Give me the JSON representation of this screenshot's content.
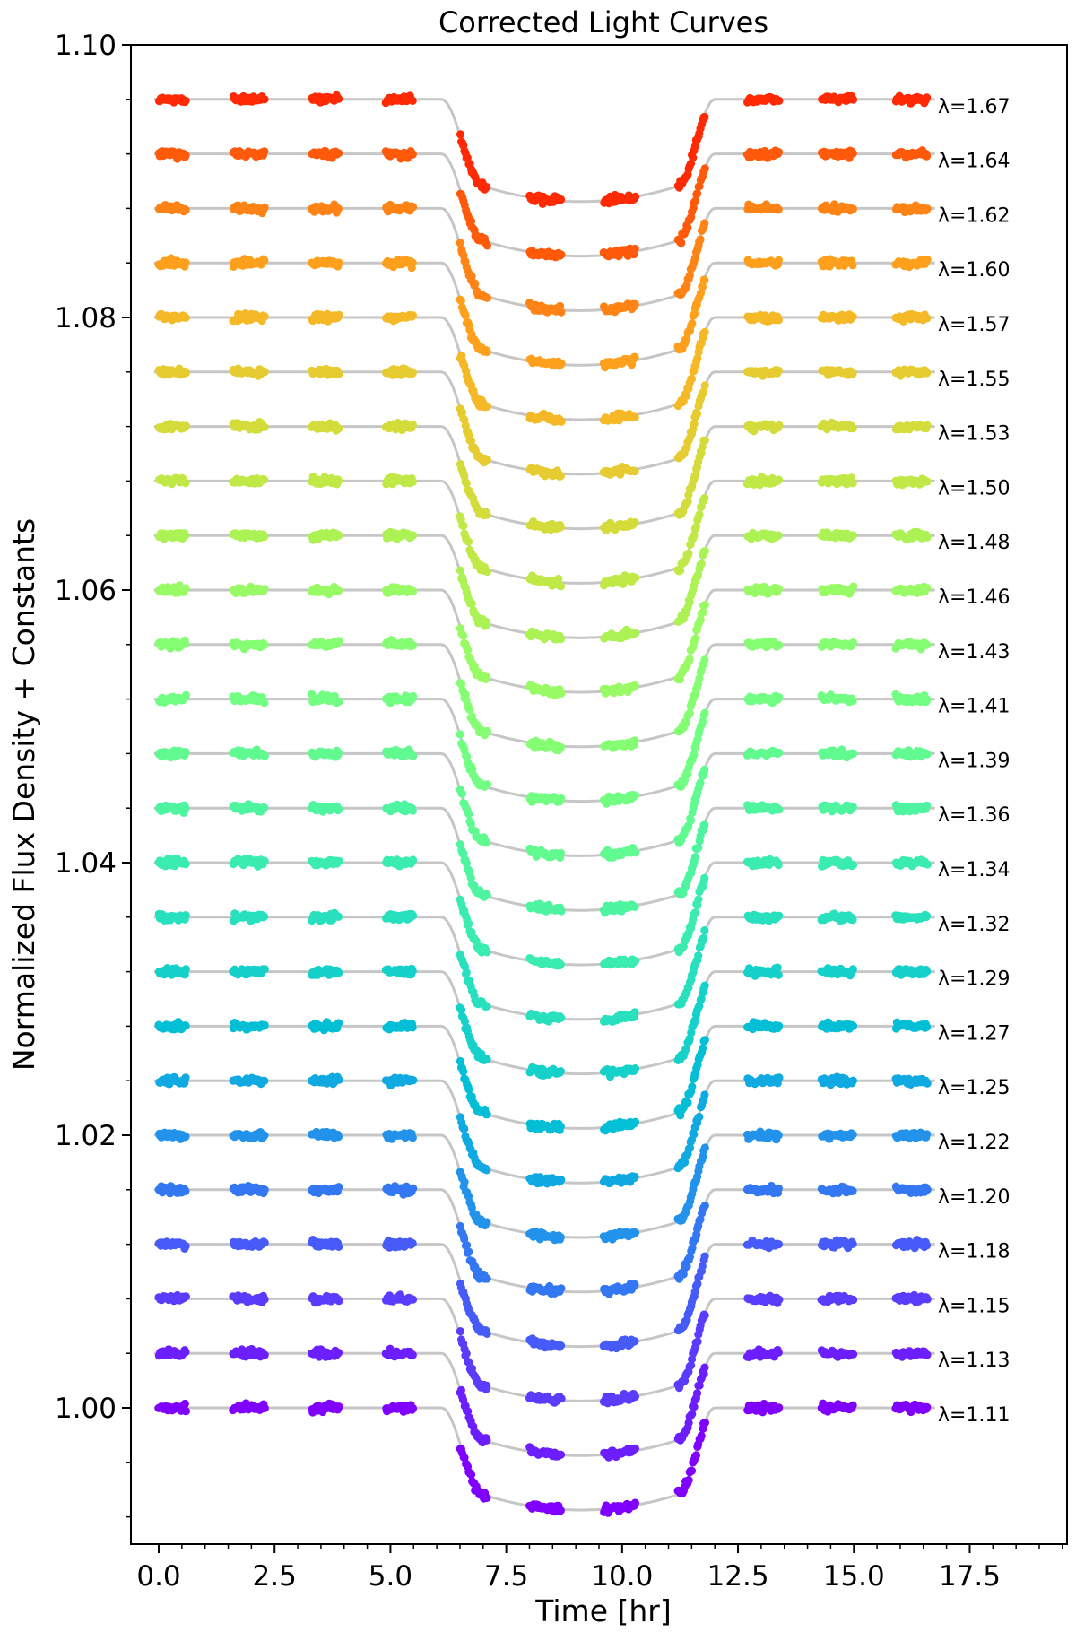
{
  "chart_data": {
    "type": "scatter",
    "title": "Corrected Light Curves",
    "xlabel": "Time [hr]",
    "ylabel": "Normalized Flux Density + Constants",
    "xlim": [
      -0.6,
      19.6
    ],
    "ylim": [
      0.99,
      1.1
    ],
    "xticks": [
      0.0,
      2.5,
      5.0,
      7.5,
      10.0,
      12.5,
      15.0,
      17.5
    ],
    "xtick_labels": [
      "0.0",
      "2.5",
      "5.0",
      "7.5",
      "10.0",
      "12.5",
      "15.0",
      "17.5"
    ],
    "yticks": [
      1.0,
      1.02,
      1.04,
      1.06,
      1.08,
      1.1
    ],
    "ytick_labels": [
      "1.00",
      "1.02",
      "1.04",
      "1.06",
      "1.08",
      "1.10"
    ],
    "grid": false,
    "transit": {
      "ingress_start_hr": 6.1,
      "full_start_hr": 7.0,
      "full_end_hr": 11.2,
      "egress_end_hr": 12.0,
      "depth": 0.0075
    },
    "observation_windows_hr": [
      [
        0.0,
        0.6
      ],
      [
        1.6,
        2.3
      ],
      [
        3.3,
        3.9
      ],
      [
        4.9,
        5.5
      ],
      [
        6.5,
        7.1
      ],
      [
        8.0,
        8.7
      ],
      [
        9.6,
        10.3
      ],
      [
        11.2,
        11.8
      ],
      [
        12.7,
        13.4
      ],
      [
        14.3,
        15.0
      ],
      [
        15.9,
        16.6
      ]
    ],
    "series": [
      {
        "name": "λ=1.11",
        "wavelength": "1.11",
        "offset": 1.0,
        "color": "#7f00ff"
      },
      {
        "name": "λ=1.13",
        "wavelength": "1.13",
        "offset": 1.004,
        "color": "#6c1ffe"
      },
      {
        "name": "λ=1.15",
        "wavelength": "1.15",
        "offset": 1.008,
        "color": "#5a3dfc"
      },
      {
        "name": "λ=1.18",
        "wavelength": "1.18",
        "offset": 1.012,
        "color": "#475bf8"
      },
      {
        "name": "λ=1.20",
        "wavelength": "1.20",
        "offset": 1.016,
        "color": "#3477f2"
      },
      {
        "name": "λ=1.22",
        "wavelength": "1.22",
        "offset": 1.02,
        "color": "#2292ea"
      },
      {
        "name": "λ=1.25",
        "wavelength": "1.25",
        "offset": 1.024,
        "color": "#10a9e1"
      },
      {
        "name": "λ=1.27",
        "wavelength": "1.27",
        "offset": 1.028,
        "color": "#02bfd6"
      },
      {
        "name": "λ=1.29",
        "wavelength": "1.29",
        "offset": 1.032,
        "color": "#15d1ca"
      },
      {
        "name": "λ=1.32",
        "wavelength": "1.32",
        "offset": 1.036,
        "color": "#28e0bd"
      },
      {
        "name": "λ=1.34",
        "wavelength": "1.34",
        "offset": 1.04,
        "color": "#3aecaf"
      },
      {
        "name": "λ=1.36",
        "wavelength": "1.36",
        "offset": 1.044,
        "color": "#4ef4a0"
      },
      {
        "name": "λ=1.39",
        "wavelength": "1.39",
        "offset": 1.048,
        "color": "#60fa91"
      },
      {
        "name": "λ=1.41",
        "wavelength": "1.41",
        "offset": 1.052,
        "color": "#72fe82"
      },
      {
        "name": "λ=1.43",
        "wavelength": "1.43",
        "offset": 1.056,
        "color": "#86fe73"
      },
      {
        "name": "λ=1.46",
        "wavelength": "1.46",
        "offset": 1.06,
        "color": "#98fa64"
      },
      {
        "name": "λ=1.48",
        "wavelength": "1.48",
        "offset": 1.064,
        "color": "#acf255"
      },
      {
        "name": "λ=1.50",
        "wavelength": "1.50",
        "offset": 1.068,
        "color": "#c0e947"
      },
      {
        "name": "λ=1.53",
        "wavelength": "1.53",
        "offset": 1.072,
        "color": "#d4dc3b"
      },
      {
        "name": "λ=1.55",
        "wavelength": "1.55",
        "offset": 1.076,
        "color": "#e6cc30"
      },
      {
        "name": "λ=1.57",
        "wavelength": "1.57",
        "offset": 1.08,
        "color": "#f5b826"
      },
      {
        "name": "λ=1.60",
        "wavelength": "1.60",
        "offset": 1.084,
        "color": "#ffa01d"
      },
      {
        "name": "λ=1.62",
        "wavelength": "1.62",
        "offset": 1.088,
        "color": "#ff8315"
      },
      {
        "name": "λ=1.64",
        "wavelength": "1.64",
        "offset": 1.092,
        "color": "#ff5a0b"
      },
      {
        "name": "λ=1.67",
        "wavelength": "1.67",
        "offset": 1.096,
        "color": "#ff2a04"
      }
    ]
  }
}
